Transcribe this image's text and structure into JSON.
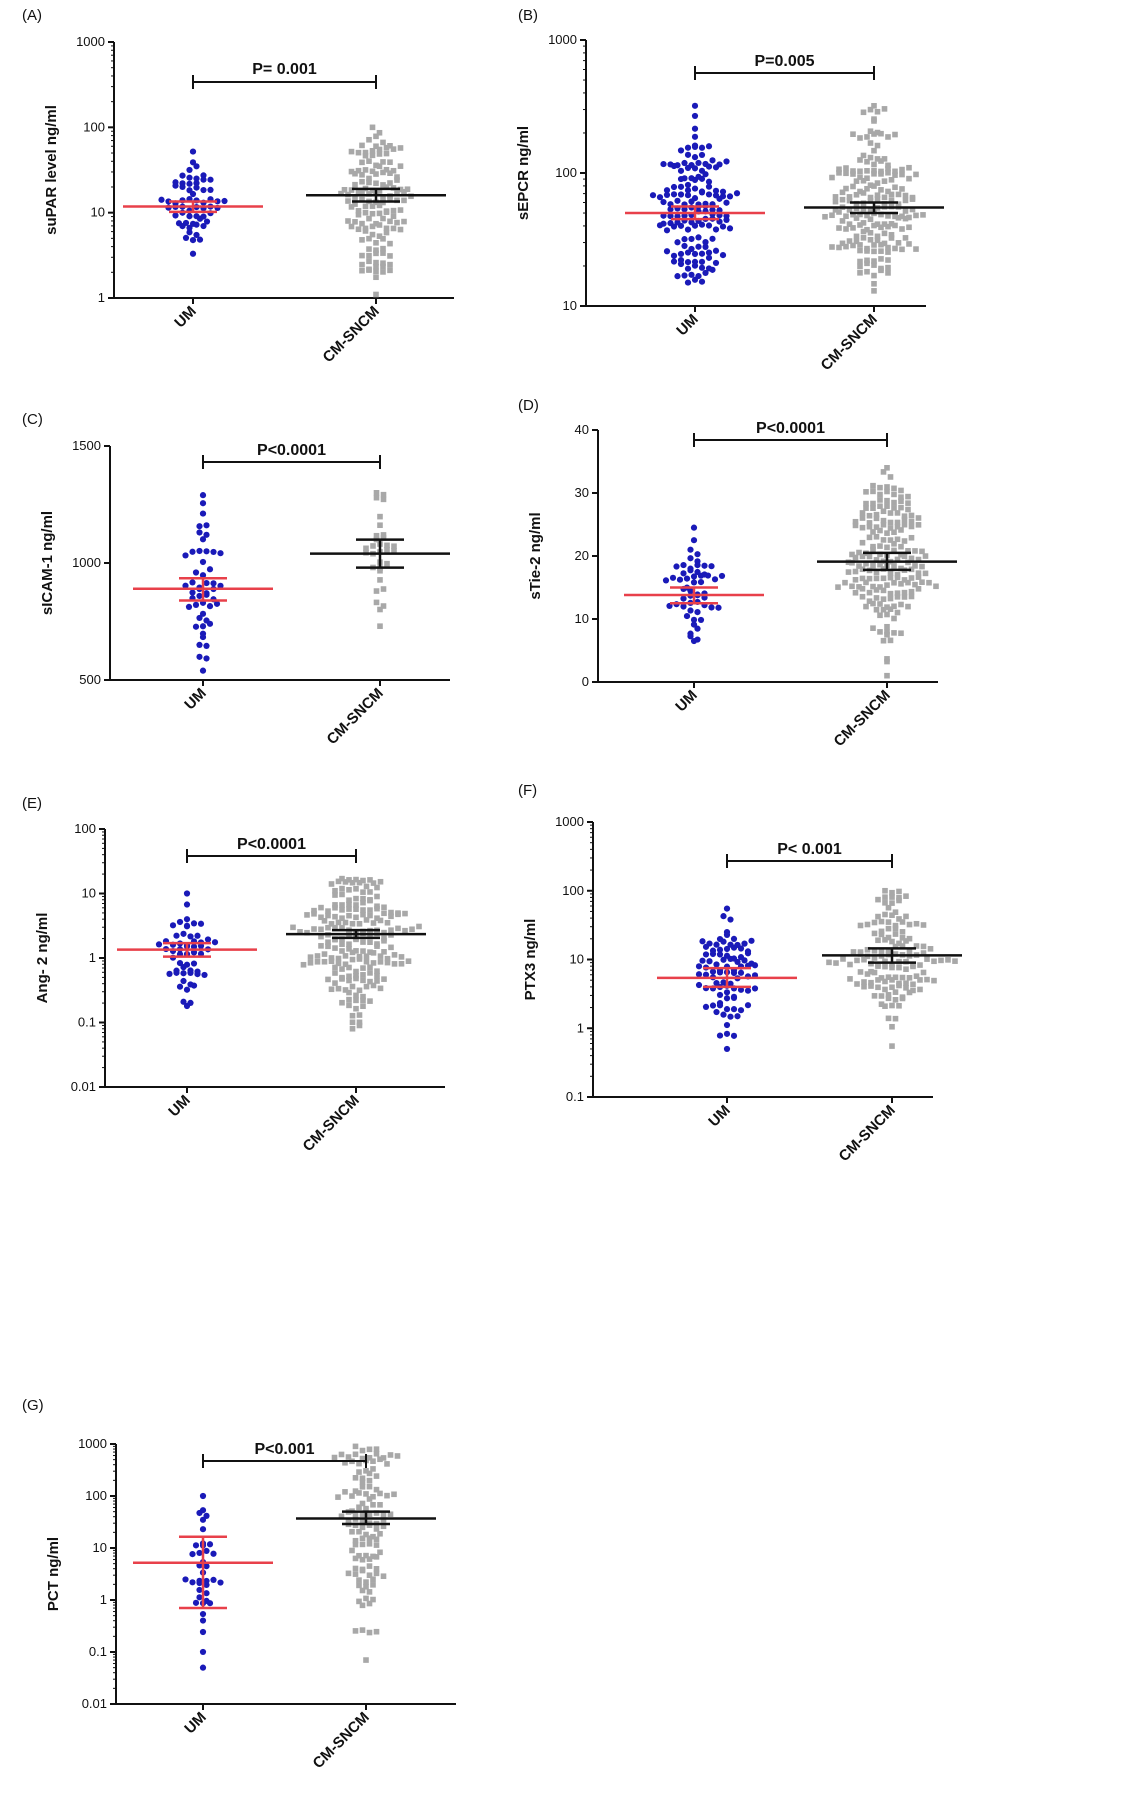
{
  "colors": {
    "um": "#1a1ab8",
    "cm": "#a8a8a8",
    "um_bar": "#e8404a",
    "cm_bar": "#111111",
    "axis": "#111111"
  },
  "chart_data": [
    {
      "type": "scatter",
      "panel": "(A)",
      "ylabel": "suPAR level ng/ml",
      "scale": "log",
      "ylim": [
        1,
        1000
      ],
      "ticks": [
        1,
        10,
        100,
        1000
      ],
      "tick_labels": [
        "1",
        "10",
        "100",
        "1000"
      ],
      "categories": [
        "UM",
        "CM-SNCM"
      ],
      "p_label": "P= 0.001",
      "groups": [
        {
          "name": "UM",
          "n": 60,
          "median": 11.8,
          "ci": [
            10.2,
            13.5
          ],
          "min": 3.3,
          "max": 52,
          "dist": "logu"
        },
        {
          "name": "CM-SNCM",
          "n": 140,
          "median": 16,
          "ci": [
            13.5,
            19
          ],
          "min": 1.1,
          "max": 100,
          "dist": "logu"
        }
      ]
    },
    {
      "type": "scatter",
      "panel": "(B)",
      "ylabel": "sEPCR ng/ml",
      "scale": "log",
      "ylim": [
        10,
        1000
      ],
      "ticks": [
        10,
        100,
        1000
      ],
      "tick_labels": [
        "10",
        "100",
        "1000"
      ],
      "categories": [
        "UM",
        "CM-SNCM"
      ],
      "p_label": "P=0.005",
      "groups": [
        {
          "name": "UM",
          "n": 150,
          "median": 50,
          "ci": [
            45,
            56
          ],
          "min": 15,
          "max": 320,
          "dist": "logn"
        },
        {
          "name": "CM-SNCM",
          "n": 190,
          "median": 55,
          "ci": [
            50,
            60
          ],
          "min": 13,
          "max": 320,
          "dist": "logn"
        }
      ]
    },
    {
      "type": "scatter",
      "panel": "(C)",
      "ylabel": "sICAM-1 ng/ml",
      "scale": "linear",
      "ylim": [
        500,
        1500
      ],
      "ticks": [
        500,
        1000,
        1500
      ],
      "tick_labels": [
        "500",
        "1000",
        "1500"
      ],
      "categories": [
        "UM",
        "CM-SNCM"
      ],
      "p_label": "P<0.0001",
      "groups": [
        {
          "name": "UM",
          "n": 50,
          "median": 890,
          "ci": [
            840,
            935
          ],
          "min": 540,
          "max": 1290,
          "dist": "norm"
        },
        {
          "name": "CM-SNCM",
          "n": 32,
          "median": 1040,
          "ci": [
            980,
            1100
          ],
          "min": 730,
          "max": 1300,
          "dist": "norm"
        }
      ]
    },
    {
      "type": "scatter",
      "panel": "(D)",
      "ylabel": "sTie-2 ng/ml",
      "scale": "linear",
      "ylim": [
        0,
        40
      ],
      "ticks": [
        0,
        10,
        20,
        30,
        40
      ],
      "tick_labels": [
        "0",
        "10",
        "20",
        "30",
        "40"
      ],
      "categories": [
        "UM",
        "CM-SNCM"
      ],
      "p_label": "P<0.0001",
      "groups": [
        {
          "name": "UM",
          "n": 55,
          "median": 13.8,
          "ci": [
            12.5,
            15
          ],
          "min": 6.5,
          "max": 24.5,
          "dist": "norm"
        },
        {
          "name": "CM-SNCM",
          "n": 190,
          "median": 19.1,
          "ci": [
            17.8,
            20.5
          ],
          "min": 1,
          "max": 34,
          "dist": "norm"
        }
      ]
    },
    {
      "type": "scatter",
      "panel": "(E)",
      "ylabel": "Ang- 2 ng/ml",
      "scale": "log",
      "ylim": [
        0.01,
        100
      ],
      "ticks": [
        0.01,
        0.1,
        1,
        10,
        100
      ],
      "tick_labels": [
        "0.01",
        "0.1",
        "1",
        "10",
        "100"
      ],
      "categories": [
        "UM",
        "CM-SNCM"
      ],
      "p_label": "P<0.0001",
      "groups": [
        {
          "name": "UM",
          "n": 55,
          "median": 1.35,
          "ci": [
            1.05,
            1.7
          ],
          "min": 0.18,
          "max": 10,
          "dist": "logn"
        },
        {
          "name": "CM-SNCM",
          "n": 200,
          "median": 2.35,
          "ci": [
            2.05,
            2.7
          ],
          "min": 0.08,
          "max": 17,
          "dist": "logn"
        }
      ]
    },
    {
      "type": "scatter",
      "panel": "(F)",
      "ylabel": "PTX3 ng/ml",
      "scale": "log",
      "ylim": [
        0.1,
        1000
      ],
      "ticks": [
        0.1,
        1,
        10,
        100,
        1000
      ],
      "tick_labels": [
        "0.1",
        "1",
        "10",
        "100",
        "1000"
      ],
      "categories": [
        "UM",
        "CM-SNCM"
      ],
      "p_label": "P< 0.001",
      "groups": [
        {
          "name": "UM",
          "n": 90,
          "median": 5.4,
          "ci": [
            4,
            7.5
          ],
          "min": 0.5,
          "max": 55,
          "dist": "logu"
        },
        {
          "name": "CM-SNCM",
          "n": 140,
          "median": 11.5,
          "ci": [
            9,
            14.5
          ],
          "min": 0.55,
          "max": 100,
          "dist": "logu"
        }
      ]
    },
    {
      "type": "scatter",
      "panel": "(G)",
      "ylabel": "PCT  ng/ml",
      "scale": "log",
      "ylim": [
        0.01,
        1000
      ],
      "ticks": [
        0.01,
        0.1,
        1,
        10,
        100,
        1000
      ],
      "tick_labels": [
        "0.01",
        "0.1",
        "1",
        "10",
        "100",
        "1000"
      ],
      "categories": [
        "UM",
        "CM-SNCM"
      ],
      "p_label": "P<0.001",
      "groups": [
        {
          "name": "UM",
          "n": 38,
          "median": 5.2,
          "ci": [
            0.7,
            16.5
          ],
          "min": 0.05,
          "max": 100,
          "dist": "logu"
        },
        {
          "name": "CM-SNCM",
          "n": 120,
          "median": 37,
          "ci": [
            29,
            50
          ],
          "min": 0.07,
          "max": 900,
          "dist": "logn"
        }
      ]
    }
  ]
}
